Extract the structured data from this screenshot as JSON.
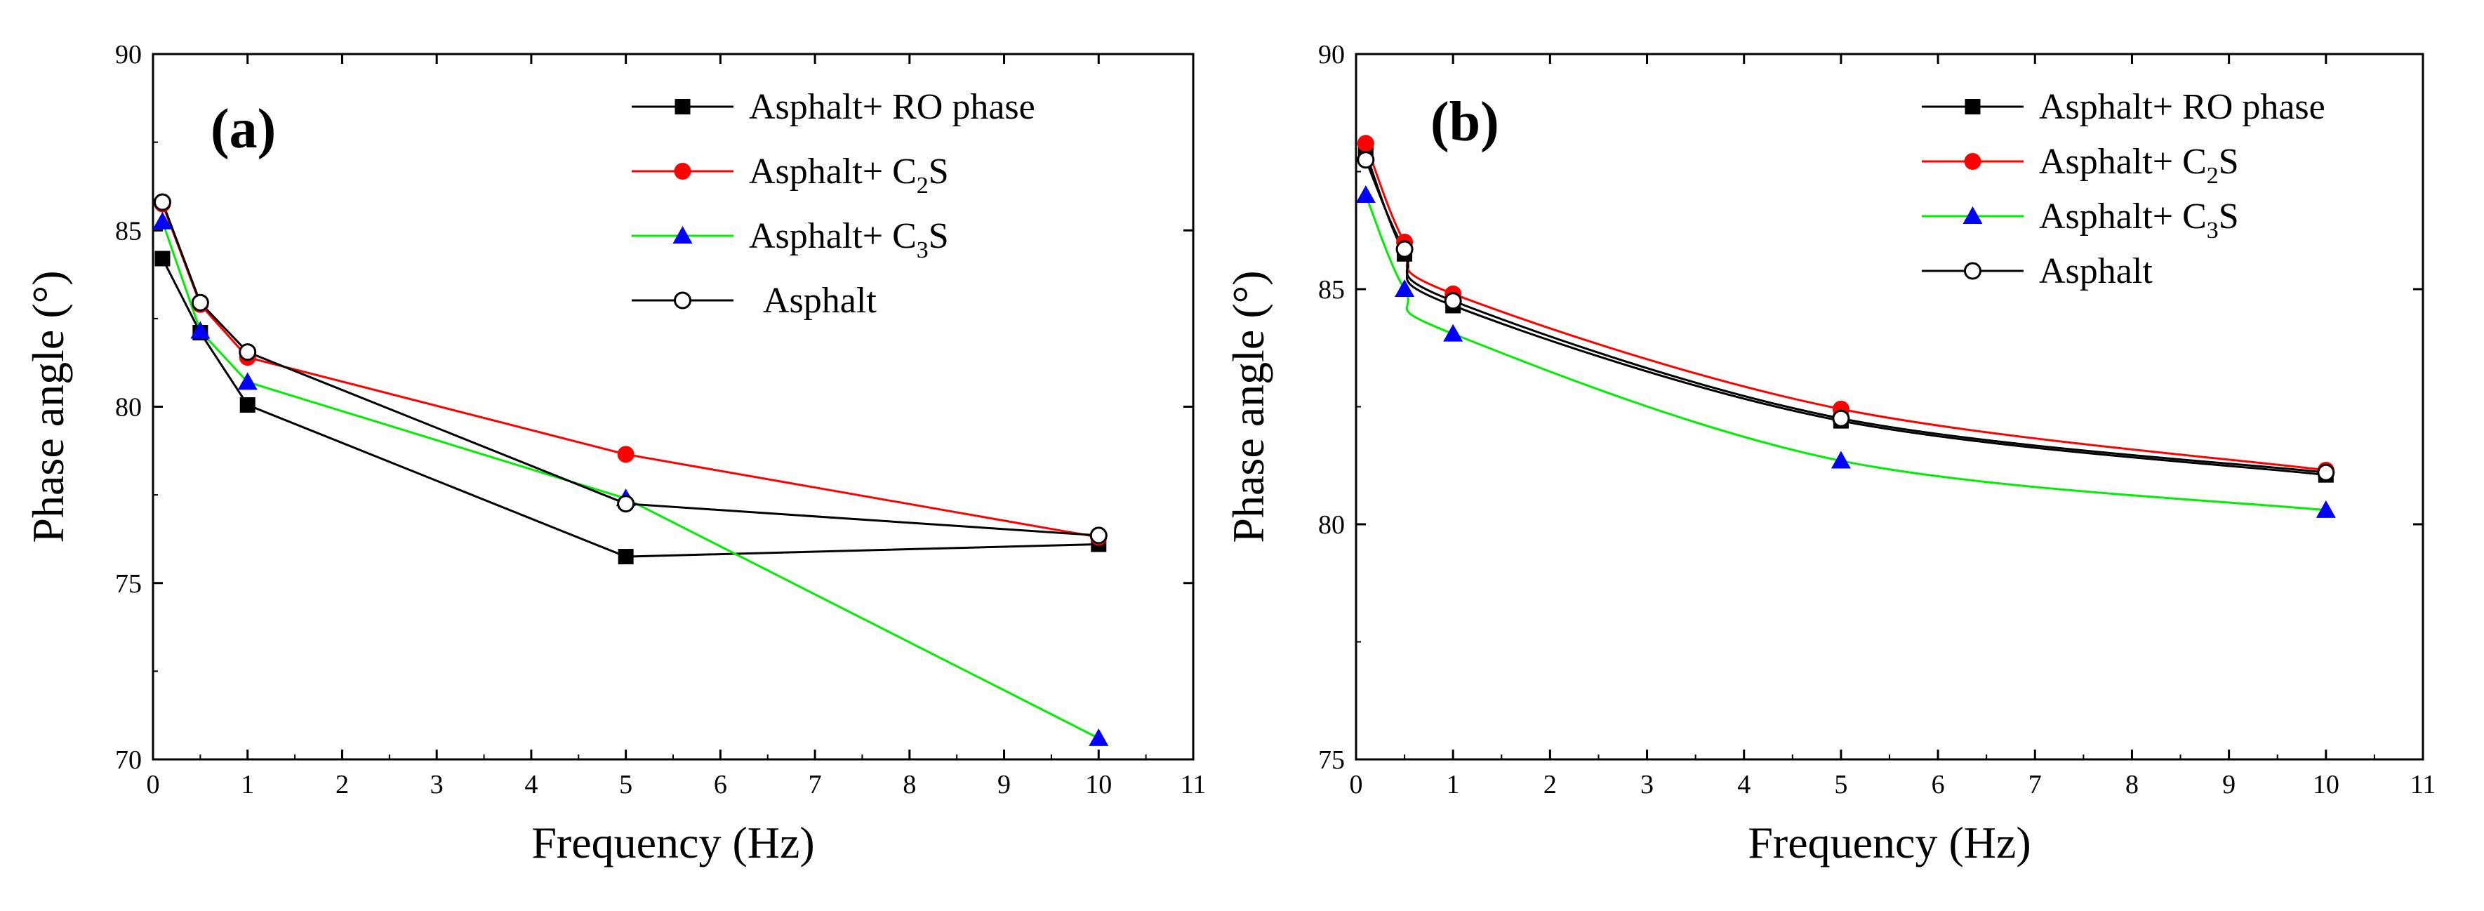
{
  "chart_data": [
    {
      "type": "line",
      "panel_label": "(a)",
      "xlabel": "Frequency (Hz)",
      "ylabel": "Phase angle (°)",
      "xlim": [
        0,
        11
      ],
      "ylim": [
        70,
        90
      ],
      "xticks": [
        0,
        1,
        2,
        3,
        4,
        5,
        6,
        7,
        8,
        9,
        10,
        11
      ],
      "yticks": [
        70,
        75,
        80,
        85,
        90
      ],
      "grid": false,
      "legend_position": "top-right",
      "series": [
        {
          "name": "Asphalt+ RO phase",
          "label_main": "Asphalt+ RO phase",
          "label_sub": "",
          "label_tail": "",
          "color": "#000000",
          "marker": "square",
          "x": [
            0.1,
            0.5,
            1,
            5,
            10
          ],
          "values": [
            84.2,
            82.1,
            80.05,
            75.75,
            76.1
          ]
        },
        {
          "name": "Asphalt+ C2S",
          "label_main": "Asphalt+ C",
          "label_sub": "2",
          "label_tail": "S",
          "color": "#ff0000",
          "marker": "circle",
          "x": [
            0.1,
            0.5,
            1,
            5,
            10
          ],
          "values": [
            85.75,
            82.9,
            81.4,
            78.65,
            76.3
          ]
        },
        {
          "name": "Asphalt+ C3S",
          "label_main": "Asphalt+ C",
          "label_sub": "3",
          "label_tail": "S",
          "color": "#00ee00",
          "marker": "triangle",
          "x": [
            0.1,
            0.5,
            1,
            5,
            10
          ],
          "values": [
            85.25,
            82.15,
            80.7,
            77.4,
            70.6
          ]
        },
        {
          "name": "Asphalt",
          "label_main": "Asphalt",
          "label_sub": "",
          "label_tail": "",
          "color": "#000000",
          "marker": "open-circle",
          "x": [
            0.1,
            0.5,
            1,
            5,
            10
          ],
          "values": [
            85.8,
            82.95,
            81.55,
            77.25,
            76.35
          ]
        }
      ]
    },
    {
      "type": "line",
      "panel_label": "(b)",
      "xlabel": "Frequency (Hz)",
      "ylabel": "Phase angle (°)",
      "xlim": [
        0,
        11
      ],
      "ylim": [
        75,
        90
      ],
      "xticks": [
        0,
        1,
        2,
        3,
        4,
        5,
        6,
        7,
        8,
        9,
        10,
        11
      ],
      "yticks": [
        75,
        80,
        85,
        90
      ],
      "grid": false,
      "legend_position": "top-right",
      "series": [
        {
          "name": "Asphalt+ RO phase",
          "label_main": "Asphalt+ RO phase",
          "label_sub": "",
          "label_tail": "",
          "color": "#000000",
          "marker": "square",
          "x": [
            0.1,
            0.5,
            1,
            5,
            10
          ],
          "values": [
            87.9,
            85.75,
            84.65,
            82.2,
            81.05
          ]
        },
        {
          "name": "Asphalt+ C2S",
          "label_main": "Asphalt+ C",
          "label_sub": "2",
          "label_tail": "S",
          "color": "#ff0000",
          "marker": "circle",
          "x": [
            0.1,
            0.5,
            1,
            5,
            10
          ],
          "values": [
            88.1,
            86.0,
            84.9,
            82.45,
            81.15
          ]
        },
        {
          "name": "Asphalt+ C3S",
          "label_main": "Asphalt+ C",
          "label_sub": "3",
          "label_tail": "S",
          "color": "#00ee00",
          "marker": "triangle",
          "x": [
            0.1,
            0.5,
            1,
            5,
            10
          ],
          "values": [
            87.0,
            85.0,
            84.05,
            81.35,
            80.3
          ]
        },
        {
          "name": "Asphalt",
          "label_main": "Asphalt",
          "label_sub": "",
          "label_tail": "",
          "color": "#000000",
          "marker": "open-circle",
          "x": [
            0.1,
            0.5,
            1,
            5,
            10
          ],
          "values": [
            87.75,
            85.85,
            84.75,
            82.25,
            81.1
          ]
        }
      ]
    }
  ]
}
